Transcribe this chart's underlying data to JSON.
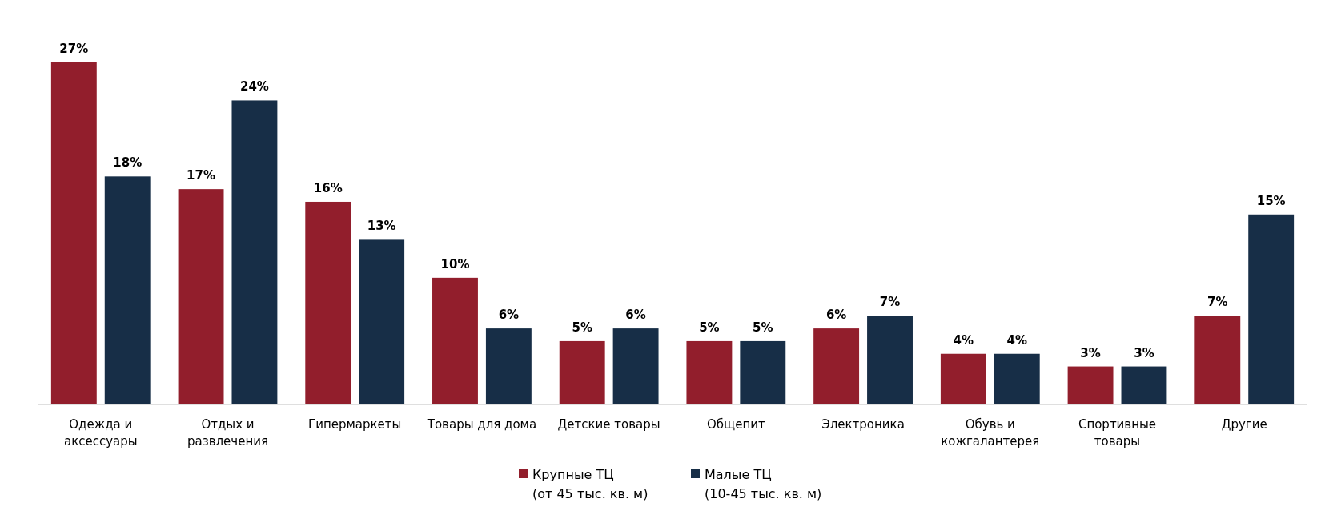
{
  "chart_data": {
    "type": "bar",
    "categories": [
      "Одежда и аксессуары",
      "Отдых и развлечения",
      "Гипермаркеты",
      "Товары для дома",
      "Детские товары",
      "Общепит",
      "Электроника",
      "Обувь и кожгалантерея",
      "Спортивные товары",
      "Другие"
    ],
    "series": [
      {
        "name": "Крупные ТЦ\n(от 45 тыс. кв. м)",
        "color": "#921e2c",
        "values": [
          27,
          17,
          16,
          10,
          5,
          5,
          6,
          4,
          3,
          7
        ],
        "value_labels": [
          "27%",
          "17%",
          "16%",
          "10%",
          "5%",
          "5%",
          "6%",
          "4%",
          "3%",
          "7%"
        ]
      },
      {
        "name": "Малые ТЦ\n(10-45 тыс. кв. м)",
        "color": "#172e47",
        "values": [
          18,
          24,
          13,
          6,
          6,
          5,
          7,
          4,
          3,
          15
        ],
        "value_labels": [
          "18%",
          "24%",
          "13%",
          "6%",
          "6%",
          "5%",
          "7%",
          "4%",
          "3%",
          "15%"
        ]
      }
    ],
    "legend": "bottom"
  }
}
